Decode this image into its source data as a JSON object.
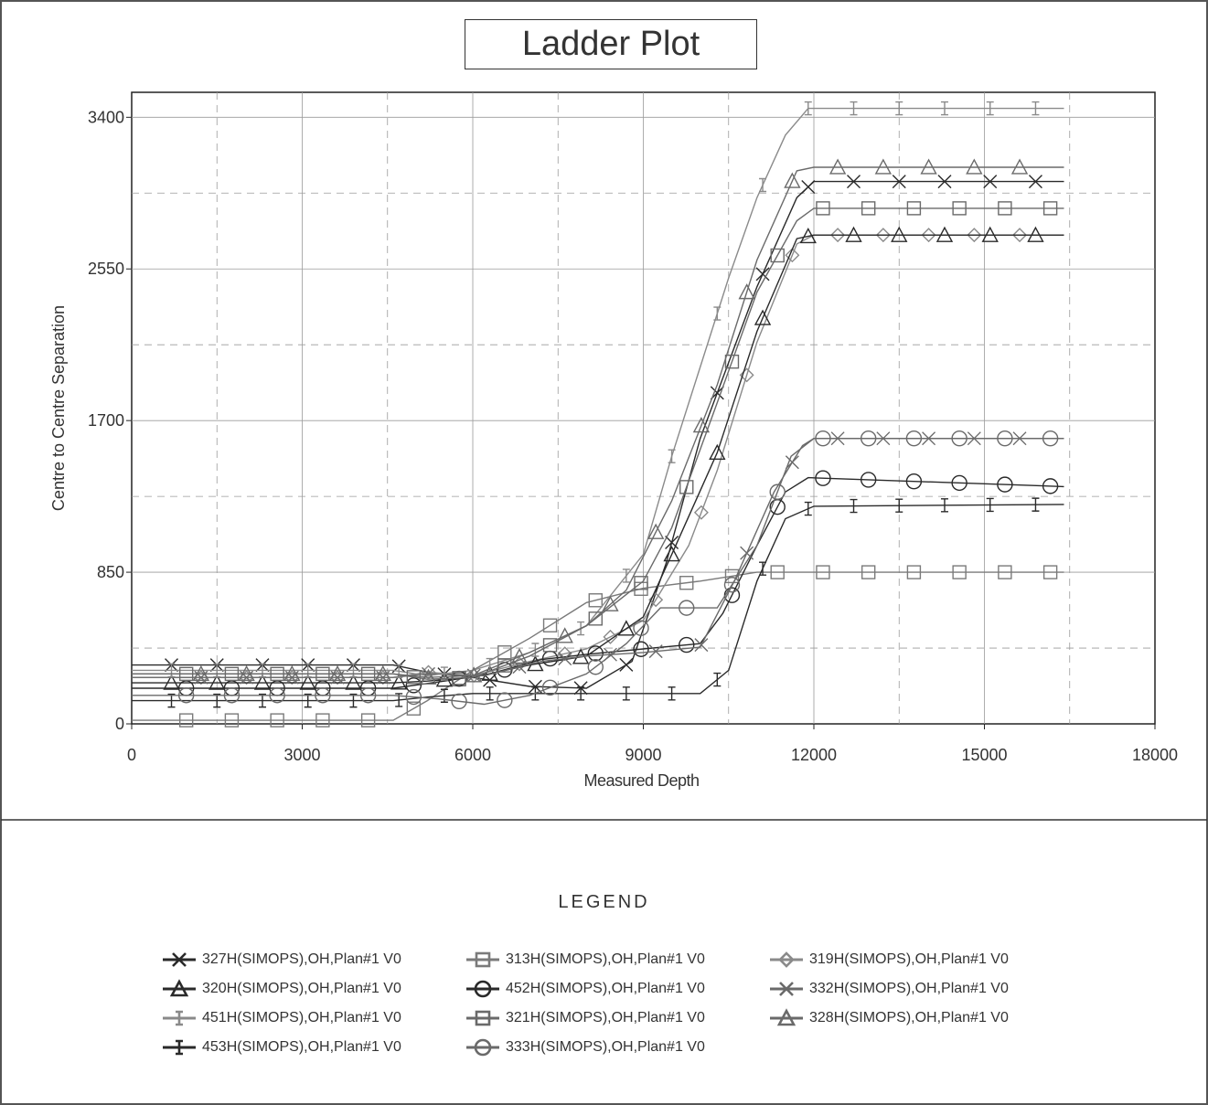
{
  "title": "Ladder Plot",
  "legend_title": "LEGEND",
  "chart_data": {
    "type": "line",
    "title": "Ladder Plot",
    "xlabel": "Measured Depth",
    "ylabel": "Centre to Centre Separation",
    "xlim": [
      0,
      18000
    ],
    "ylim": [
      0,
      3400
    ],
    "xticks": [
      0,
      3000,
      6000,
      9000,
      12000,
      15000,
      18000
    ],
    "yticks": [
      0,
      850,
      1700,
      2550,
      3400
    ],
    "grid": true,
    "legend_position": "bottom",
    "series": [
      {
        "name": "327H(SIMOPS),OH,Plan#1 V0",
        "marker": "x",
        "color": "#2a2a2a",
        "points": [
          [
            0,
            330
          ],
          [
            4600,
            330
          ],
          [
            5200,
            290
          ],
          [
            6000,
            260
          ],
          [
            7000,
            210
          ],
          [
            8000,
            200
          ],
          [
            8800,
            350
          ],
          [
            9400,
            900
          ],
          [
            10000,
            1600
          ],
          [
            11000,
            2450
          ],
          [
            11700,
            2950
          ],
          [
            12000,
            3040
          ],
          [
            16400,
            3040
          ]
        ]
      },
      {
        "name": "313H(SIMOPS),OH,Plan#1 V0",
        "marker": "square",
        "color": "#7a7a7a",
        "points": [
          [
            0,
            20
          ],
          [
            4600,
            20
          ],
          [
            5200,
            130
          ],
          [
            6000,
            300
          ],
          [
            7000,
            480
          ],
          [
            8000,
            680
          ],
          [
            9000,
            760
          ],
          [
            10000,
            800
          ],
          [
            11000,
            850
          ],
          [
            16400,
            850
          ]
        ]
      },
      {
        "name": "319H(SIMOPS),OH,Plan#1 V0",
        "marker": "diamond",
        "color": "#8a8a8a",
        "points": [
          [
            0,
            260
          ],
          [
            4600,
            260
          ],
          [
            5200,
            290
          ],
          [
            6000,
            270
          ],
          [
            7000,
            350
          ],
          [
            8000,
            420
          ],
          [
            9000,
            580
          ],
          [
            9800,
            1000
          ],
          [
            10300,
            1420
          ],
          [
            11000,
            2140
          ],
          [
            11700,
            2690
          ],
          [
            12000,
            2740
          ],
          [
            16400,
            2740
          ]
        ]
      },
      {
        "name": "320H(SIMOPS),OH,Plan#1 V0",
        "marker": "triangle",
        "color": "#2a2a2a",
        "points": [
          [
            0,
            230
          ],
          [
            4600,
            230
          ],
          [
            5200,
            240
          ],
          [
            6000,
            260
          ],
          [
            7000,
            330
          ],
          [
            8000,
            380
          ],
          [
            9000,
            600
          ],
          [
            9500,
            950
          ],
          [
            10300,
            1520
          ],
          [
            11000,
            2200
          ],
          [
            11700,
            2720
          ],
          [
            12000,
            2740
          ],
          [
            16400,
            2740
          ]
        ]
      },
      {
        "name": "452H(SIMOPS),OH,Plan#1 V0",
        "marker": "circle",
        "color": "#2a2a2a",
        "points": [
          [
            0,
            200
          ],
          [
            4600,
            200
          ],
          [
            5500,
            240
          ],
          [
            6300,
            280
          ],
          [
            7200,
            360
          ],
          [
            8000,
            390
          ],
          [
            9000,
            420
          ],
          [
            10000,
            450
          ],
          [
            10400,
            620
          ],
          [
            11000,
            1000
          ],
          [
            11500,
            1300
          ],
          [
            11900,
            1380
          ],
          [
            16400,
            1330
          ]
        ]
      },
      {
        "name": "332H(SIMOPS),OH,Plan#1 V0",
        "marker": "x",
        "color": "#6a6a6a",
        "points": [
          [
            0,
            260
          ],
          [
            4600,
            260
          ],
          [
            5200,
            280
          ],
          [
            6200,
            270
          ],
          [
            7200,
            350
          ],
          [
            8000,
            380
          ],
          [
            9000,
            400
          ],
          [
            10000,
            430
          ],
          [
            10600,
            800
          ],
          [
            11300,
            1300
          ],
          [
            11800,
            1560
          ],
          [
            12000,
            1600
          ],
          [
            16400,
            1600
          ]
        ]
      },
      {
        "name": "451H(SIMOPS),OH,Plan#1 V0",
        "marker": "bar",
        "color": "#8a8a8a",
        "points": [
          [
            0,
            300
          ],
          [
            4600,
            300
          ],
          [
            5200,
            270
          ],
          [
            6000,
            300
          ],
          [
            7000,
            400
          ],
          [
            8000,
            550
          ],
          [
            9000,
            950
          ],
          [
            9500,
            1500
          ],
          [
            10000,
            2000
          ],
          [
            10500,
            2500
          ],
          [
            11000,
            2950
          ],
          [
            11500,
            3300
          ],
          [
            11900,
            3450
          ],
          [
            16400,
            3450
          ]
        ]
      },
      {
        "name": "321H(SIMOPS),OH,Plan#1 V0",
        "marker": "square",
        "color": "#6a6a6a",
        "points": [
          [
            0,
            280
          ],
          [
            4600,
            280
          ],
          [
            5200,
            250
          ],
          [
            6000,
            260
          ],
          [
            7000,
            380
          ],
          [
            8000,
            550
          ],
          [
            9000,
            800
          ],
          [
            9500,
            1100
          ],
          [
            10300,
            1800
          ],
          [
            11000,
            2420
          ],
          [
            11700,
            2820
          ],
          [
            12000,
            2890
          ],
          [
            16400,
            2890
          ]
        ]
      },
      {
        "name": "328H(SIMOPS),OH,Plan#1 V0",
        "marker": "triangle",
        "color": "#6a6a6a",
        "points": [
          [
            0,
            280
          ],
          [
            4600,
            280
          ],
          [
            5200,
            260
          ],
          [
            6000,
            270
          ],
          [
            7000,
            400
          ],
          [
            8000,
            550
          ],
          [
            8700,
            750
          ],
          [
            9500,
            1250
          ],
          [
            10300,
            1900
          ],
          [
            11000,
            2600
          ],
          [
            11700,
            3100
          ],
          [
            12000,
            3120
          ],
          [
            16400,
            3120
          ]
        ]
      },
      {
        "name": "453H(SIMOPS),OH,Plan#1 V0",
        "marker": "bar",
        "color": "#2a2a2a",
        "points": [
          [
            0,
            130
          ],
          [
            4600,
            130
          ],
          [
            5200,
            150
          ],
          [
            6000,
            170
          ],
          [
            7000,
            170
          ],
          [
            8000,
            170
          ],
          [
            9000,
            170
          ],
          [
            10000,
            170
          ],
          [
            10500,
            300
          ],
          [
            11000,
            800
          ],
          [
            11500,
            1150
          ],
          [
            12000,
            1220
          ],
          [
            16400,
            1230
          ]
        ]
      },
      {
        "name": "333H(SIMOPS),OH,Plan#1 V0",
        "marker": "circle",
        "color": "#6a6a6a",
        "points": [
          [
            0,
            160
          ],
          [
            4600,
            160
          ],
          [
            5400,
            140
          ],
          [
            6200,
            110
          ],
          [
            7000,
            160
          ],
          [
            8000,
            280
          ],
          [
            8700,
            450
          ],
          [
            9300,
            650
          ],
          [
            10300,
            650
          ],
          [
            11000,
            1000
          ],
          [
            11600,
            1500
          ],
          [
            12000,
            1600
          ],
          [
            16400,
            1600
          ]
        ]
      }
    ]
  }
}
